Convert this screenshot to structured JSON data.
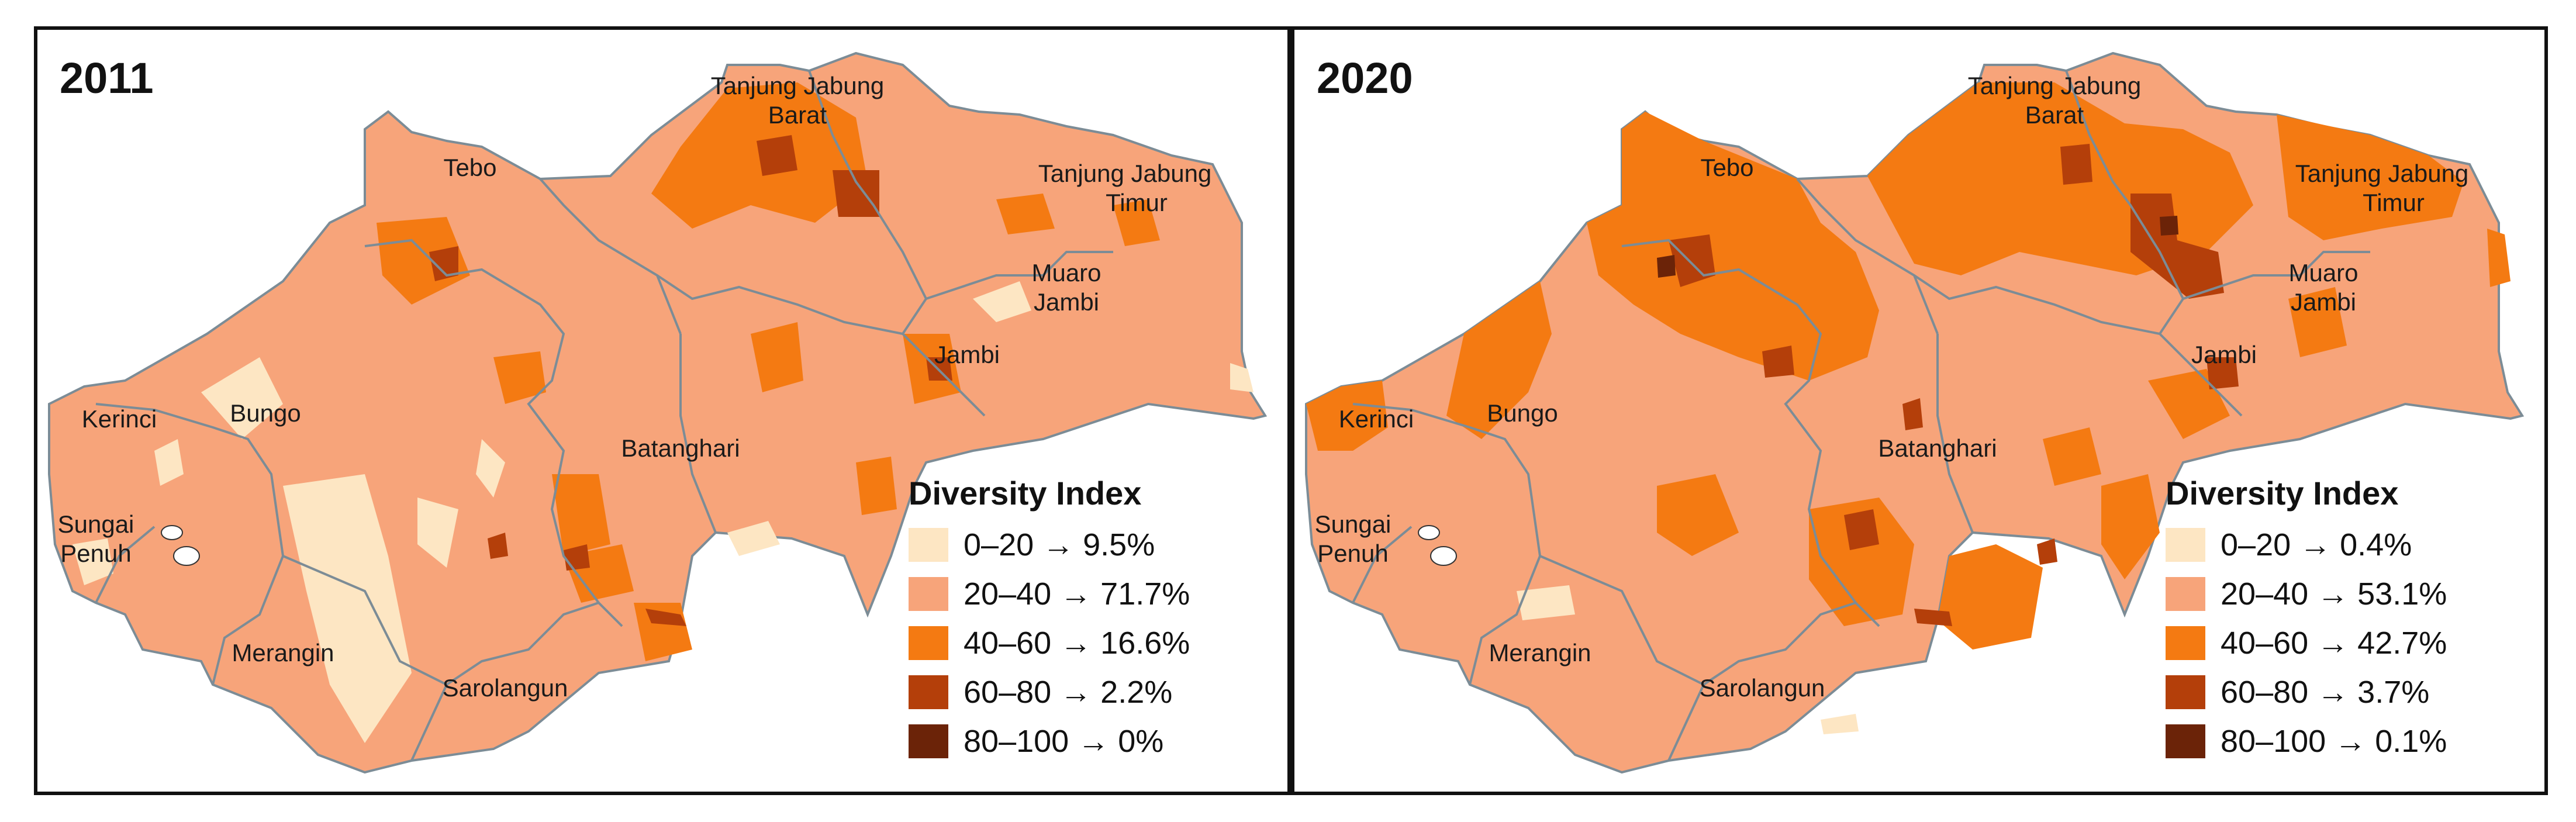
{
  "colors": {
    "c0_20": "#fde6c3",
    "c20_40": "#f7a47a",
    "c40_60": "#f47a12",
    "c60_80": "#b43f0a",
    "c80_100": "#6b2308",
    "border": "#7c8c96",
    "ink": "#111111"
  },
  "legend_title": "Diversity Index",
  "classes": [
    "0–20",
    "20–40",
    "40–60",
    "60–80",
    "80–100"
  ],
  "panels": [
    {
      "year": "2011",
      "legend": [
        {
          "label": "0–20 → 9.5%",
          "percent": 9.5
        },
        {
          "label": "20–40 → 71.7%",
          "percent": 71.7
        },
        {
          "label": "40–60 → 16.6%",
          "percent": 16.6
        },
        {
          "label": "60–80 → 2.2%",
          "percent": 2.2
        },
        {
          "label": "80–100 → 0%",
          "percent": 0
        }
      ]
    },
    {
      "year": "2020",
      "legend": [
        {
          "label": "0–20 → 0.4%",
          "percent": 0.4
        },
        {
          "label": "20–40 → 53.1%",
          "percent": 53.1
        },
        {
          "label": "40–60 → 42.7%",
          "percent": 42.7
        },
        {
          "label": "60–80 → 3.7%",
          "percent": 3.7
        },
        {
          "label": "80–100 → 0.1%",
          "percent": 0.1
        }
      ]
    }
  ],
  "regions": {
    "tebo": "Tebo",
    "tanjung_jabung_barat": [
      "Tanjung Jabung",
      "Barat"
    ],
    "tanjung_jabung_timur": [
      "Tanjung Jabung",
      "Timur"
    ],
    "muaro_jambi": [
      "Muaro",
      "Jambi"
    ],
    "jambi": "Jambi",
    "kerinci": "Kerinci",
    "bungo": "Bungo",
    "batanghari": "Batanghari",
    "sungai_penuh": [
      "Sungai",
      "Penuh"
    ],
    "merangin": "Merangin",
    "sarolangun": "Sarolangun"
  }
}
